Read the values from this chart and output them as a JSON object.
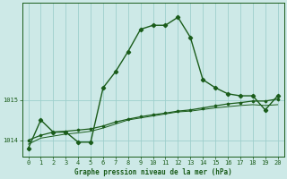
{
  "title": "Graphe pression niveau de la mer (hPa)",
  "bg_color": "#cde9e7",
  "grid_color": "#9ecfcc",
  "line_color": "#1a5c1a",
  "xlim": [
    -0.5,
    20.5
  ],
  "ylim": [
    1013.6,
    1017.4
  ],
  "yticks": [
    1014,
    1015
  ],
  "xticks": [
    0,
    1,
    2,
    3,
    4,
    5,
    6,
    7,
    8,
    9,
    10,
    11,
    12,
    13,
    14,
    15,
    16,
    17,
    18,
    19,
    20
  ],
  "series1_x": [
    0,
    1,
    2,
    3,
    4,
    5,
    6,
    7,
    8,
    9,
    10,
    11,
    12,
    13,
    14,
    15,
    16,
    17,
    18,
    19,
    20
  ],
  "series1_y": [
    1013.8,
    1014.5,
    1014.2,
    1014.2,
    1013.95,
    1013.95,
    1015.3,
    1015.7,
    1016.2,
    1016.75,
    1016.85,
    1016.85,
    1017.05,
    1016.55,
    1015.5,
    1015.3,
    1015.15,
    1015.1,
    1015.1,
    1014.75,
    1015.1
  ],
  "series2_x": [
    0,
    1,
    2,
    3,
    4,
    5,
    6,
    7,
    8,
    9,
    10,
    11,
    12,
    13,
    14,
    15,
    16,
    17,
    18,
    19,
    20
  ],
  "series2_y": [
    1013.9,
    1014.05,
    1014.1,
    1014.15,
    1014.18,
    1014.22,
    1014.3,
    1014.4,
    1014.5,
    1014.55,
    1014.6,
    1014.65,
    1014.7,
    1014.72,
    1014.76,
    1014.8,
    1014.83,
    1014.86,
    1014.88,
    1014.86,
    1014.88
  ],
  "series3_x": [
    0,
    1,
    2,
    3,
    4,
    5,
    6,
    7,
    8,
    9,
    10,
    11,
    12,
    13,
    14,
    15,
    16,
    17,
    18,
    19,
    20
  ],
  "series3_y": [
    1014.0,
    1014.12,
    1014.2,
    1014.22,
    1014.25,
    1014.28,
    1014.35,
    1014.45,
    1014.52,
    1014.58,
    1014.63,
    1014.67,
    1014.72,
    1014.75,
    1014.8,
    1014.85,
    1014.9,
    1014.93,
    1014.97,
    1014.97,
    1015.02
  ]
}
